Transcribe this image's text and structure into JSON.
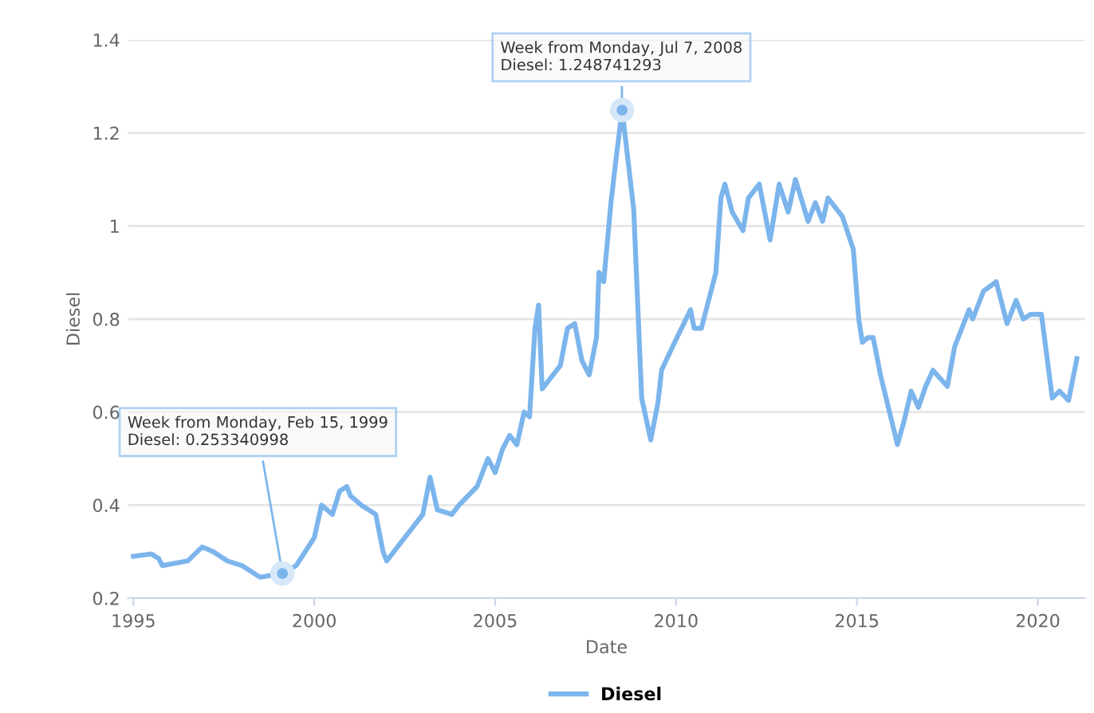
{
  "chart_data": {
    "type": "line",
    "xlabel": "Date",
    "ylabel": "Diesel",
    "xlim": [
      1994.85,
      2021.3
    ],
    "xticks": [
      1995,
      2000,
      2005,
      2010,
      2015,
      2020
    ],
    "ylim": [
      0.2,
      1.4
    ],
    "yticks": [
      0.2,
      0.4,
      0.6,
      0.8,
      1,
      1.2,
      1.4
    ],
    "grid": "y",
    "legend": "bottom",
    "marker": "none",
    "line_style": "solid",
    "series": [
      {
        "name": "Diesel",
        "color": "#7cb5ec",
        "x": [
          1995.0,
          1995.5,
          1995.7,
          1995.8,
          1996.5,
          1996.9,
          1997.2,
          1997.6,
          1998.0,
          1998.5,
          1999.12,
          1999.5,
          2000.0,
          2000.2,
          2000.5,
          2000.7,
          2000.9,
          2001.0,
          2001.3,
          2001.7,
          2001.9,
          2002.0,
          2002.5,
          2002.8,
          2003.0,
          2003.2,
          2003.4,
          2003.8,
          2004.0,
          2004.5,
          2004.8,
          2005.0,
          2005.2,
          2005.4,
          2005.6,
          2005.8,
          2005.95,
          2006.1,
          2006.2,
          2006.3,
          2006.5,
          2006.8,
          2007.0,
          2007.2,
          2007.4,
          2007.6,
          2007.8,
          2007.87,
          2008.0,
          2008.2,
          2008.35,
          2008.51,
          2008.83,
          2009.05,
          2009.3,
          2009.5,
          2009.6,
          2009.9,
          2010.4,
          2010.5,
          2010.7,
          2010.9,
          2011.1,
          2011.24,
          2011.35,
          2011.55,
          2011.85,
          2012.0,
          2012.3,
          2012.6,
          2012.85,
          2013.1,
          2013.3,
          2013.65,
          2013.85,
          2014.05,
          2014.2,
          2014.6,
          2014.9,
          2015.05,
          2015.15,
          2015.3,
          2015.45,
          2015.65,
          2016.12,
          2016.3,
          2016.5,
          2016.7,
          2016.9,
          2017.1,
          2017.5,
          2017.7,
          2018.1,
          2018.2,
          2018.5,
          2018.85,
          2019.15,
          2019.4,
          2019.6,
          2019.8,
          2020.1,
          2020.4,
          2020.6,
          2020.85,
          2021.08
        ],
        "values": [
          0.29,
          0.295,
          0.285,
          0.27,
          0.28,
          0.31,
          0.3,
          0.28,
          0.27,
          0.245,
          0.253,
          0.27,
          0.33,
          0.4,
          0.38,
          0.43,
          0.44,
          0.42,
          0.4,
          0.38,
          0.3,
          0.28,
          0.33,
          0.36,
          0.38,
          0.46,
          0.39,
          0.38,
          0.4,
          0.44,
          0.5,
          0.47,
          0.52,
          0.55,
          0.53,
          0.6,
          0.59,
          0.78,
          0.83,
          0.65,
          0.67,
          0.7,
          0.78,
          0.79,
          0.71,
          0.68,
          0.76,
          0.9,
          0.88,
          1.05,
          1.15,
          1.249,
          1.035,
          0.63,
          0.54,
          0.62,
          0.69,
          0.74,
          0.82,
          0.78,
          0.78,
          0.84,
          0.9,
          1.06,
          1.09,
          1.03,
          0.99,
          1.06,
          1.09,
          0.97,
          1.09,
          1.03,
          1.1,
          1.01,
          1.05,
          1.01,
          1.06,
          1.02,
          0.95,
          0.8,
          0.75,
          0.76,
          0.76,
          0.68,
          0.53,
          0.58,
          0.645,
          0.61,
          0.655,
          0.69,
          0.655,
          0.74,
          0.82,
          0.8,
          0.86,
          0.88,
          0.79,
          0.84,
          0.8,
          0.81,
          0.81,
          0.63,
          0.645,
          0.625,
          0.715
        ]
      }
    ],
    "annotations": [
      {
        "text": "Week from Monday, Jul 7, 2008\nDiesel: 1.248741293",
        "x": 2008.51,
        "y": 1.249
      },
      {
        "text": "Week from Monday, Feb 15, 1999\nDiesel: 0.253340998",
        "x": 1999.12,
        "y": 0.253
      }
    ]
  }
}
